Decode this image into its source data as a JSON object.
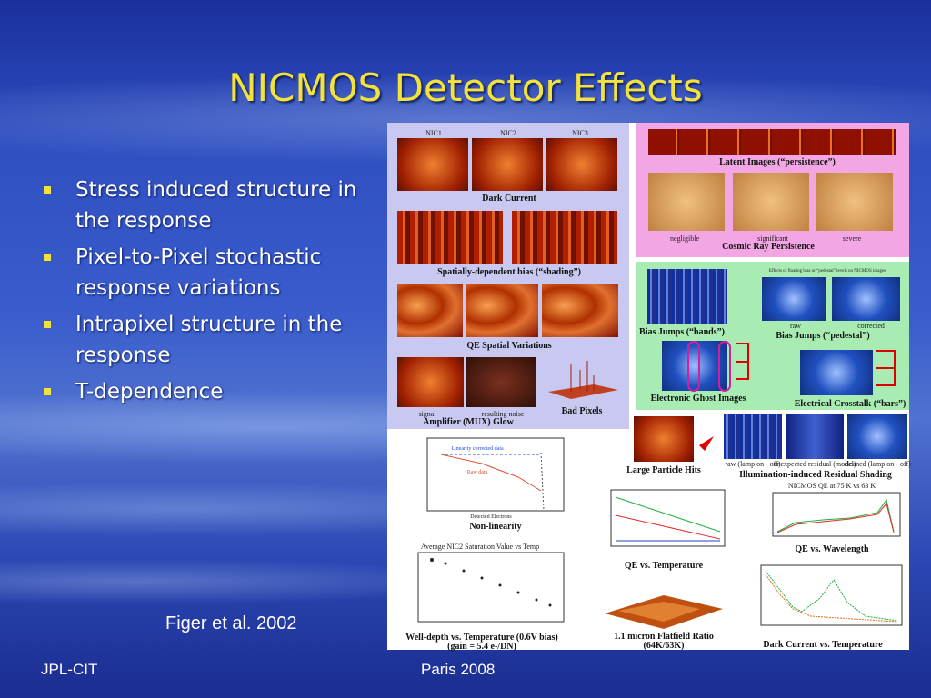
{
  "header": {
    "title": "NICMOS Detector Effects"
  },
  "bullets": [
    "Stress induced structure in the response",
    "Pixel-to-Pixel stochastic response variations",
    "Intrapixel structure in the response",
    "T-dependence"
  ],
  "citation": "Figer et al. 2002",
  "footer": {
    "left": "JPL-CIT",
    "right": "Paris 2008"
  },
  "figure": {
    "nic_labels": [
      "NIC1",
      "NIC2",
      "NIC3"
    ],
    "dark_current": "Dark Current",
    "shading": "Spatially-dependent bias (“shading”)",
    "qe_spatial": "QE Spatial Variations",
    "mux_labels": [
      "signal",
      "resulting noise"
    ],
    "mux": "Amplifier (MUX) Glow",
    "bad_pixels": "Bad Pixels",
    "latent": "Latent Images (“persistence”)",
    "cr_labels": [
      "negligible",
      "significant",
      "severe"
    ],
    "cr": "Cosmic Ray Persistence",
    "bands": "Bias Jumps (“bands”)",
    "pedestal_note": "Effects of floating bias or “pedestal” levels on NICMOS images",
    "pedestal_labels": [
      "raw",
      "corrected"
    ],
    "pedestal": "Bias Jumps (“pedestal”)",
    "ghost": "Electronic Ghost Images",
    "crosstalk": "Electrical Crosstalk (“bars”)",
    "particle": "Large Particle Hits",
    "residual_labels": [
      "raw (lamp on - off)",
      "unexpected residual (model)",
      "cleaned (lamp on - off)"
    ],
    "residual": "Illumination-induced Residual Shading",
    "nonlin_labels": [
      "Linearity corrected data",
      "Raw data",
      "Detected Electrons"
    ],
    "nonlin": "Non-linearity",
    "qe_temp": "QE vs. Temperature",
    "qe_wave_title": "NICMOS QE at 75 K vs 63 K",
    "qe_wave": "QE vs. Wavelength",
    "well_title": "Average NIC2 Saturation Value vs Temp",
    "well": [
      "Well-depth vs. Temperature (0.6V bias)",
      "(gain = 5.4 e-/DN)"
    ],
    "flat": [
      "1.1 micron Flatfield Ratio",
      "(64K/63K)"
    ],
    "dark_temp": "Dark Current vs. Temperature"
  }
}
